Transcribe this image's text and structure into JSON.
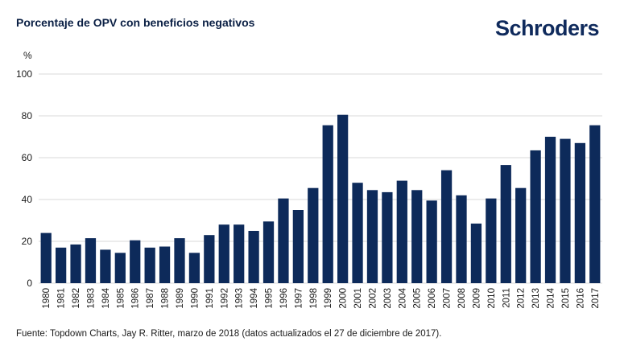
{
  "header": {
    "title": "Porcentaje de OPV con beneficios negativos",
    "logo_text": "Schroders"
  },
  "footer": {
    "source": "Fuente: Topdown Charts, Jay R. Ritter, marzo de 2018 (datos actualizados el 27 de diciembre de 2017)."
  },
  "colors": {
    "bar": "#0d2a5a",
    "grid": "#d9d9d9",
    "text": "#1a1a1a"
  },
  "chart_data": {
    "type": "bar",
    "title": "Porcentaje de OPV con beneficios negativos",
    "ylabel": "%",
    "xlabel": "",
    "ylim": [
      0,
      100
    ],
    "yticks": [
      0,
      20,
      40,
      60,
      80,
      100
    ],
    "grid": true,
    "categories": [
      "1980",
      "1981",
      "1982",
      "1983",
      "1984",
      "1985",
      "1986",
      "1987",
      "1988",
      "1989",
      "1990",
      "1991",
      "1992",
      "1993",
      "1994",
      "1995",
      "1996",
      "1997",
      "1998",
      "1999",
      "2000",
      "2001",
      "2002",
      "2003",
      "2004",
      "2005",
      "2006",
      "2007",
      "2008",
      "2009",
      "2010",
      "2011",
      "2012",
      "2013",
      "2014",
      "2015",
      "2016",
      "2017"
    ],
    "values": [
      24,
      17,
      18.5,
      21.5,
      16,
      14.5,
      20.5,
      17,
      17.5,
      21.5,
      14.5,
      23,
      28,
      28,
      25,
      29.5,
      40.5,
      35,
      45.5,
      75.5,
      80.5,
      48,
      44.5,
      43.5,
      49,
      44.5,
      39.5,
      54,
      42,
      28.5,
      40.5,
      56.5,
      45.5,
      63.5,
      70,
      69,
      67,
      75.5
    ]
  }
}
